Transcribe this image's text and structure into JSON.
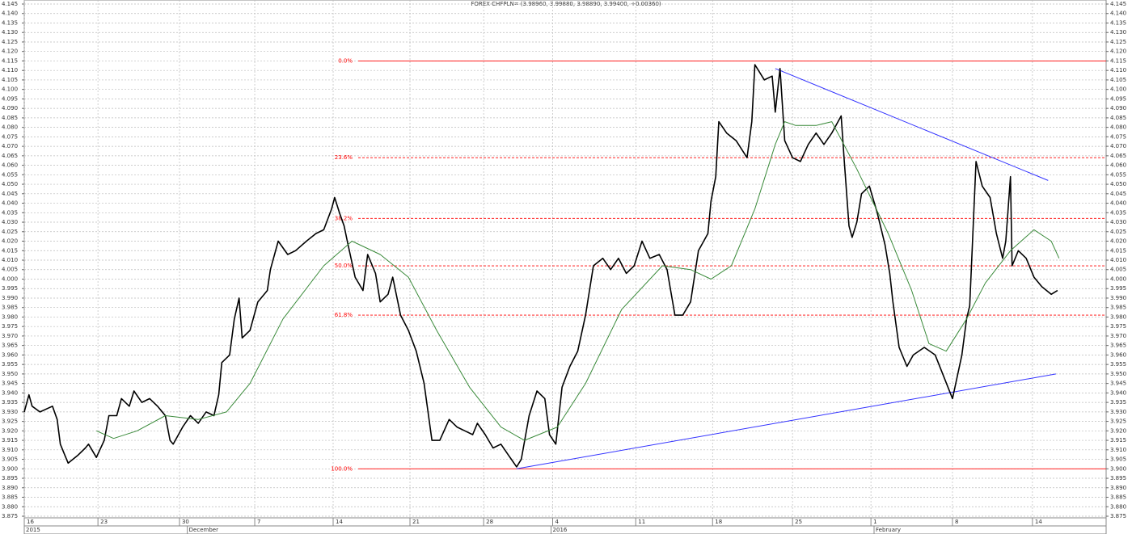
{
  "chart_data": {
    "type": "line",
    "title": "FOREX CHFPLN= (3.98960, 3.99880, 3.98890, 3.99400, +0.00360)",
    "grid": true,
    "xlim": [
      0,
      69
    ],
    "ylim": [
      3.875,
      4.145
    ],
    "yticks": [
      3.875,
      {
        "value": 3.88,
        "label": "3.880"
      },
      3.885,
      {
        "value": 3.89,
        "label": "3.890"
      },
      3.895,
      {
        "value": 3.9,
        "label": "3.900"
      },
      3.905,
      {
        "value": 3.91,
        "label": "3.910"
      },
      3.915,
      {
        "value": 3.92,
        "label": "3.920"
      },
      3.925,
      {
        "value": 3.93,
        "label": "3.930"
      },
      3.935,
      {
        "value": 3.94,
        "label": "3.940"
      },
      3.945,
      {
        "value": 3.95,
        "label": "3.950"
      },
      3.955,
      {
        "value": 3.96,
        "label": "3.960"
      },
      3.965,
      {
        "value": 3.97,
        "label": "3.970"
      },
      3.975,
      {
        "value": 3.98,
        "label": "3.980"
      },
      3.985,
      {
        "value": 3.99,
        "label": "3.990"
      },
      3.995,
      {
        "value": 4,
        "label": "4.000"
      },
      4.005,
      {
        "value": 4.01,
        "label": "4.010"
      },
      4.015,
      {
        "value": 4.02,
        "label": "4.020"
      },
      4.025,
      {
        "value": 4.03,
        "label": "4.030"
      },
      4.035,
      {
        "value": 4.04,
        "label": "4.040"
      },
      4.045,
      {
        "value": 4.05,
        "label": "4.050"
      },
      4.055,
      {
        "value": 4.06,
        "label": "4.060"
      },
      4.065,
      {
        "value": 4.07,
        "label": "4.070"
      },
      4.075,
      {
        "value": 4.08,
        "label": "4.080"
      },
      4.085,
      {
        "value": 4.09,
        "label": "4.090"
      },
      4.095,
      {
        "value": 4.1,
        "label": "4.100"
      },
      4.105,
      {
        "value": 4.11,
        "label": "4.110"
      },
      4.115,
      {
        "value": 4.12,
        "label": "4.120"
      },
      4.125,
      {
        "value": 4.13,
        "label": "4.130"
      },
      4.135,
      {
        "value": 4.14,
        "label": "4.140"
      },
      4.145
    ],
    "xticks": [
      {
        "value": 0,
        "label": "16"
      },
      {
        "value": 4.7,
        "label": "23"
      },
      {
        "value": 9.9,
        "label": "30"
      },
      {
        "value": 14.7,
        "label": "7"
      },
      {
        "value": 19.7,
        "label": "14"
      },
      {
        "value": 24.6,
        "label": "21"
      },
      {
        "value": 29.3,
        "label": "28"
      },
      {
        "value": 33.7,
        "label": "4"
      },
      {
        "value": 39.0,
        "label": "11"
      },
      {
        "value": 43.9,
        "label": "18"
      },
      {
        "value": 49.0,
        "label": "25"
      },
      {
        "value": 54.0,
        "label": "1"
      },
      {
        "value": 59.2,
        "label": "8"
      },
      {
        "value": 64.3,
        "label": "14"
      }
    ],
    "period_labels": [
      {
        "value": 0,
        "label": "2015"
      },
      {
        "value": 10.4,
        "label": "December"
      },
      {
        "value": 33.6,
        "label": "2016"
      },
      {
        "value": 54.2,
        "label": "February"
      }
    ],
    "series": [
      {
        "color": "#000000",
        "x": [
          0,
          0.3,
          0.5,
          1.0,
          1.8,
          2.1,
          2.3,
          2.6,
          2.8,
          3.4,
          3.9,
          4.1,
          4.6,
          5.1,
          5.4,
          5.9,
          6.2,
          6.7,
          7.0,
          7.5,
          8.0,
          8.5,
          9.0,
          9.3,
          9.5,
          10.1,
          10.6,
          11.1,
          11.6,
          12.1,
          12.4,
          12.6,
          13.1,
          13.4,
          13.7,
          13.9,
          14.4,
          14.9,
          15.5,
          15.7,
          16.2,
          16.8,
          17.3,
          18.0,
          18.6,
          19.1,
          19.6,
          19.8,
          20.1,
          20.4,
          20.6,
          21.1,
          21.6,
          21.9,
          22.4,
          22.7,
          23.2,
          23.5,
          24.0,
          24.5,
          25.0,
          25.5,
          26.0,
          26.5,
          27.1,
          27.6,
          28.1,
          28.6,
          28.9,
          29.4,
          29.9,
          30.4,
          30.9,
          31.4,
          31.7,
          32.2,
          32.7,
          33.2,
          33.5,
          33.9,
          34.3,
          34.8,
          35.3,
          35.8,
          36.3,
          36.9,
          37.4,
          37.9,
          38.4,
          38.9,
          39.4,
          39.9,
          40.5,
          41.0,
          41.5,
          42.0,
          42.5,
          43.0,
          43.6,
          43.8,
          44.1,
          44.3,
          44.8,
          45.4,
          46.1,
          46.4,
          46.6,
          47.2,
          47.7,
          47.9,
          48.2,
          48.5,
          49.0,
          49.5,
          50.0,
          50.5,
          51.0,
          51.5,
          52.1,
          52.3,
          52.6,
          52.8,
          53.1,
          53.4,
          53.9,
          54.4,
          54.9,
          55.2,
          55.4,
          55.8,
          56.3,
          56.7,
          57.4,
          58.1,
          59.2,
          59.8,
          60.1,
          60.3,
          60.7,
          61.1,
          61.6,
          62.0,
          62.4,
          62.6,
          62.9,
          63.0,
          63.4,
          63.9,
          64.4,
          64.9,
          65.5,
          65.9
        ],
        "values": [
          3.93,
          3.939,
          3.933,
          3.93,
          3.933,
          3.926,
          3.913,
          3.907,
          3.903,
          3.907,
          3.911,
          3.913,
          3.906,
          3.915,
          3.928,
          3.928,
          3.937,
          3.933,
          3.941,
          3.935,
          3.937,
          3.933,
          3.928,
          3.915,
          3.913,
          3.922,
          3.928,
          3.924,
          3.93,
          3.928,
          3.939,
          3.956,
          3.96,
          3.979,
          3.99,
          3.969,
          3.973,
          3.988,
          3.994,
          4.005,
          4.02,
          4.013,
          4.015,
          4.02,
          4.024,
          4.026,
          4.037,
          4.043,
          4.035,
          4.028,
          4.02,
          4.001,
          3.994,
          4.013,
          4.003,
          3.988,
          3.992,
          4.001,
          3.981,
          3.973,
          3.962,
          3.945,
          3.915,
          3.915,
          3.926,
          3.922,
          3.92,
          3.918,
          3.924,
          3.918,
          3.911,
          3.913,
          3.907,
          3.901,
          3.905,
          3.928,
          3.941,
          3.937,
          3.918,
          3.913,
          3.943,
          3.954,
          3.962,
          3.981,
          4.007,
          4.011,
          4.005,
          4.011,
          4.003,
          4.007,
          4.02,
          4.011,
          4.013,
          4.005,
          3.981,
          3.981,
          3.988,
          4.015,
          4.024,
          4.041,
          4.054,
          4.083,
          4.077,
          4.073,
          4.064,
          4.083,
          4.113,
          4.105,
          4.107,
          4.088,
          4.111,
          4.073,
          4.064,
          4.062,
          4.071,
          4.077,
          4.071,
          4.077,
          4.086,
          4.062,
          4.028,
          4.022,
          4.03,
          4.045,
          4.049,
          4.035,
          4.018,
          4.003,
          3.988,
          3.964,
          3.954,
          3.96,
          3.964,
          3.96,
          3.937,
          3.96,
          3.979,
          3.986,
          4.062,
          4.049,
          4.043,
          4.024,
          4.011,
          4.02,
          4.054,
          4.007,
          4.015,
          4.011,
          4.001,
          3.996,
          3.992,
          3.994
        ]
      },
      {
        "color": "#3a8a3a",
        "x": [
          4.6,
          5.7,
          7.2,
          9.0,
          11.1,
          12.9,
          14.4,
          16.5,
          19.1,
          20.9,
          22.7,
          24.5,
          26.3,
          28.4,
          30.4,
          31.9,
          34.0,
          35.8,
          38.1,
          40.7,
          42.5,
          43.8,
          45.1,
          46.6,
          47.9,
          48.5,
          49.2,
          50.5,
          51.5,
          53.1,
          55.1,
          56.6,
          57.7,
          58.8,
          60.1,
          61.3,
          62.9,
          64.4,
          65.5,
          66.0
        ],
        "values": [
          3.92,
          3.916,
          3.92,
          3.928,
          3.926,
          3.93,
          3.945,
          3.979,
          4.007,
          4.02,
          4.013,
          4.001,
          3.973,
          3.943,
          3.922,
          3.915,
          3.922,
          3.945,
          3.984,
          4.007,
          4.005,
          4.0,
          4.007,
          4.037,
          4.071,
          4.083,
          4.081,
          4.081,
          4.083,
          4.058,
          4.024,
          3.994,
          3.966,
          3.962,
          3.979,
          3.998,
          4.015,
          4.026,
          4.02,
          4.011
        ]
      }
    ],
    "trendlines": [
      {
        "color": "#3333ff",
        "x": [
          47.9,
          65.3
        ],
        "values": [
          4.111,
          4.052
        ]
      },
      {
        "color": "#3333ff",
        "x": [
          31.4,
          65.8
        ],
        "values": [
          3.9,
          3.95
        ]
      }
    ],
    "levels_color": "#ff0000",
    "levels_xlim": [
      21.3,
      69
    ],
    "levels": [
      {
        "label": "0.0%",
        "value": 4.115,
        "style": "solid"
      },
      {
        "label": "23.6%",
        "value": 4.064,
        "style": "dashed"
      },
      {
        "label": "38.2%",
        "value": 4.032,
        "style": "dashed"
      },
      {
        "label": "50.0%",
        "value": 4.007,
        "style": "dashed"
      },
      {
        "label": "61.8%",
        "value": 3.981,
        "style": "dashed"
      },
      {
        "label": "100.0%",
        "value": 3.9,
        "style": "solid"
      }
    ]
  }
}
